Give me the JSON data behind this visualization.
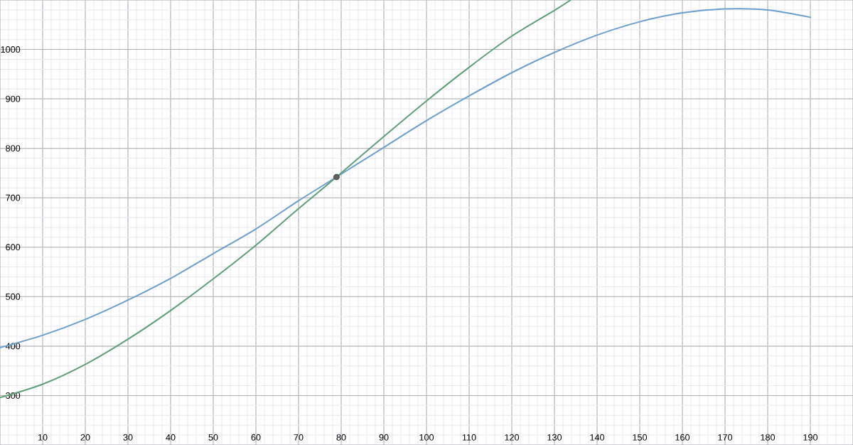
{
  "chart_data": {
    "type": "line",
    "xlim": [
      0,
      200
    ],
    "ylim": [
      200,
      1100
    ],
    "xticks": [
      10,
      20,
      30,
      40,
      50,
      60,
      70,
      80,
      90,
      100,
      110,
      120,
      130,
      140,
      150,
      160,
      170,
      180,
      190
    ],
    "yticks": [
      300,
      400,
      500,
      600,
      700,
      800,
      900,
      1000
    ],
    "grid": true,
    "series": [
      {
        "color": "#6c9ece",
        "x": [
          0,
          10,
          20,
          30,
          40,
          50,
          60,
          70,
          78.9,
          90,
          100,
          110,
          120,
          130,
          140,
          150,
          160,
          170,
          180,
          190
        ],
        "values": [
          397,
          422,
          454,
          493,
          537,
          587,
          637,
          694,
          742,
          802,
          856,
          906,
          953,
          994,
          1029,
          1056,
          1074,
          1082,
          1080,
          1065
        ]
      },
      {
        "color": "#5e9e78",
        "x": [
          0,
          10,
          20,
          30,
          40,
          50,
          60,
          70,
          78.9,
          90,
          100,
          110,
          120,
          130,
          133.8
        ],
        "values": [
          296,
          323,
          363,
          414,
          472,
          536,
          604,
          678,
          742,
          824,
          896,
          964,
          1027,
          1079,
          1100
        ]
      },
      {
        "type": "scatter",
        "marker": "circle",
        "color": "#616161",
        "x": [
          78.9
        ],
        "values": [
          742
        ]
      }
    ]
  }
}
